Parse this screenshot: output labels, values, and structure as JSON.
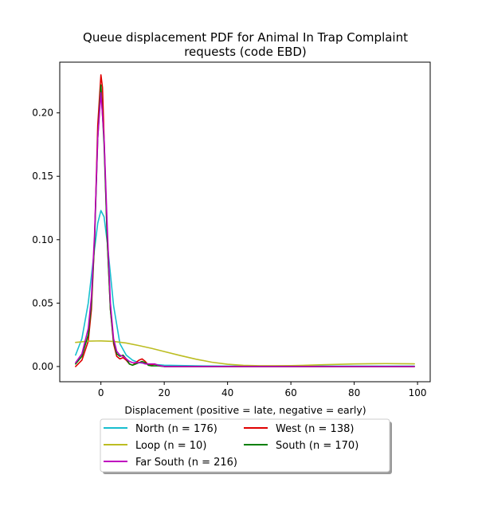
{
  "chart_data": {
    "type": "line",
    "title": "Queue displacement PDF for Animal In Trap Complaint\nrequests (code EBD)",
    "xlabel": "Displacement (positive = late, negative = early)",
    "ylabel": "",
    "xlim": [
      -13,
      104
    ],
    "ylim": [
      -0.012,
      0.24
    ],
    "xticks": [
      0,
      20,
      40,
      60,
      80,
      100
    ],
    "yticks": [
      0.0,
      0.05,
      0.1,
      0.15,
      0.2
    ],
    "xtick_labels": [
      "0",
      "20",
      "40",
      "60",
      "80",
      "100"
    ],
    "ytick_labels": [
      "0.00",
      "0.05",
      "0.10",
      "0.15",
      "0.20"
    ],
    "grid": false,
    "legend": {
      "placement": "below",
      "columns": 2
    },
    "series": [
      {
        "name": "North (n = 176)",
        "color": "#17becf",
        "x": [
          -8,
          -6,
          -4,
          -2,
          -1,
          0,
          1,
          2,
          4,
          6,
          8,
          10,
          12,
          15,
          20,
          30,
          40,
          60,
          80,
          99
        ],
        "y": [
          0.009,
          0.022,
          0.05,
          0.093,
          0.113,
          0.123,
          0.118,
          0.098,
          0.048,
          0.018,
          0.009,
          0.005,
          0.003,
          0.002,
          0.001,
          0.0005,
          0.0003,
          0.0003,
          0.0003,
          0.0003
        ]
      },
      {
        "name": "West (n = 138)",
        "color": "#e00000",
        "x": [
          -8,
          -6,
          -4,
          -3,
          -2,
          -1,
          0,
          0.5,
          1,
          2,
          3,
          4,
          5,
          6,
          7,
          8,
          9,
          10,
          11,
          12,
          13,
          14,
          15,
          16,
          17,
          18,
          20,
          30,
          99
        ],
        "y": [
          0.0,
          0.005,
          0.02,
          0.045,
          0.1,
          0.19,
          0.23,
          0.22,
          0.18,
          0.1,
          0.045,
          0.018,
          0.008,
          0.006,
          0.007,
          0.005,
          0.002,
          0.001,
          0.003,
          0.005,
          0.006,
          0.004,
          0.001,
          0.001,
          0.002,
          0.001,
          0.0,
          0.0,
          0.0
        ]
      },
      {
        "name": "Loop (n = 10)",
        "color": "#bcbd22",
        "x": [
          -8,
          -4,
          0,
          4,
          8,
          12,
          16,
          20,
          25,
          30,
          35,
          40,
          45,
          50,
          55,
          60,
          65,
          70,
          75,
          80,
          85,
          90,
          95,
          99
        ],
        "y": [
          0.019,
          0.02,
          0.0202,
          0.0198,
          0.0185,
          0.0165,
          0.0143,
          0.0118,
          0.0087,
          0.0058,
          0.0034,
          0.0018,
          0.0009,
          0.0006,
          0.0006,
          0.0007,
          0.001,
          0.0014,
          0.0017,
          0.002,
          0.0022,
          0.0023,
          0.0022,
          0.0021
        ]
      },
      {
        "name": "South (n = 170)",
        "color": "#008000",
        "x": [
          -8,
          -6,
          -4,
          -3,
          -2,
          -1,
          0,
          1,
          2,
          3,
          4,
          5,
          6,
          7,
          8,
          9,
          10,
          11,
          12,
          13,
          14,
          15,
          16,
          18,
          20,
          30,
          99
        ],
        "y": [
          0.002,
          0.008,
          0.025,
          0.05,
          0.1,
          0.18,
          0.222,
          0.175,
          0.1,
          0.045,
          0.02,
          0.01,
          0.008,
          0.009,
          0.006,
          0.002,
          0.001,
          0.002,
          0.003,
          0.004,
          0.003,
          0.001,
          0.0005,
          0.0005,
          0.0,
          0.0,
          0.0
        ]
      },
      {
        "name": "Far South (n = 216)",
        "color": "#bf00bf",
        "x": [
          -8,
          -6,
          -4,
          -3,
          -2,
          -1,
          0,
          1,
          2,
          3,
          4,
          5,
          6,
          7,
          8,
          9,
          10,
          11,
          12,
          13,
          14,
          15,
          16,
          17,
          18,
          20,
          30,
          99
        ],
        "y": [
          0.003,
          0.01,
          0.03,
          0.055,
          0.105,
          0.18,
          0.216,
          0.18,
          0.11,
          0.05,
          0.022,
          0.012,
          0.009,
          0.008,
          0.006,
          0.004,
          0.003,
          0.003,
          0.003,
          0.003,
          0.002,
          0.002,
          0.002,
          0.002,
          0.001,
          0.0,
          0.0,
          0.0
        ]
      }
    ]
  }
}
